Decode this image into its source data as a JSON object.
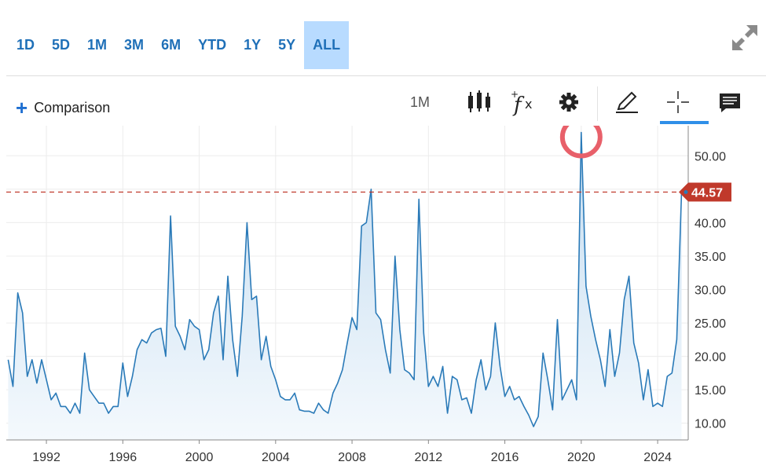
{
  "range_buttons": [
    "1D",
    "5D",
    "1M",
    "3M",
    "6M",
    "YTD",
    "1Y",
    "5Y",
    "ALL"
  ],
  "active_range": "ALL",
  "toolbar": {
    "comparison_label": "Comparison",
    "interval_label": "1M"
  },
  "colors": {
    "line": "#2a7ab8",
    "fill_top": "#c4dcf0",
    "fill_bottom": "#f4f9fd",
    "last_price": "#c0392b",
    "accent": "#1f70b8",
    "highlight_circle": "#e8606a"
  },
  "icons": [
    "expand-icon",
    "candlestick-icon",
    "fx-icon",
    "gear-icon",
    "pencil-icon",
    "crosshair-icon",
    "comment-icon"
  ],
  "chart_data": {
    "type": "area",
    "title": "",
    "xlabel": "",
    "ylabel": "",
    "x_ticks": [
      "1992",
      "1996",
      "2000",
      "2004",
      "2008",
      "2012",
      "2016",
      "2020",
      "2024"
    ],
    "y_ticks": [
      "10.00",
      "15.00",
      "20.00",
      "25.00",
      "30.00",
      "35.00",
      "40.00",
      "45.00",
      "50.00"
    ],
    "xlim": [
      1989.9,
      2025.6
    ],
    "ylim": [
      7.5,
      54.5
    ],
    "last_value": 44.57,
    "last_value_label": "44.57",
    "grid": true,
    "highlight_peak": [
      2020.0,
      53.5
    ],
    "series": [
      {
        "x": [
          1990,
          1990.25,
          1990.5,
          1990.75,
          1991,
          1991.25,
          1991.5,
          1991.75,
          1992,
          1992.25,
          1992.5,
          1992.75,
          1993,
          1993.25,
          1993.5,
          1993.75,
          1994,
          1994.25,
          1994.5,
          1994.75,
          1995,
          1995.25,
          1995.5,
          1995.75,
          1996,
          1996.25,
          1996.5,
          1996.75,
          1997,
          1997.25,
          1997.5,
          1997.75,
          1998,
          1998.25,
          1998.5,
          1998.75,
          1999,
          1999.25,
          1999.5,
          1999.75,
          2000,
          2000.25,
          2000.5,
          2000.75,
          2001,
          2001.25,
          2001.5,
          2001.75,
          2002,
          2002.25,
          2002.5,
          2002.75,
          2003,
          2003.25,
          2003.5,
          2003.75,
          2004,
          2004.25,
          2004.5,
          2004.75,
          2005,
          2005.25,
          2005.5,
          2005.75,
          2006,
          2006.25,
          2006.5,
          2006.75,
          2007,
          2007.25,
          2007.5,
          2007.75,
          2008,
          2008.25,
          2008.5,
          2008.75,
          2009,
          2009.25,
          2009.5,
          2009.75,
          2010,
          2010.25,
          2010.5,
          2010.75,
          2011,
          2011.25,
          2011.5,
          2011.75,
          2012,
          2012.25,
          2012.5,
          2012.75,
          2013,
          2013.25,
          2013.5,
          2013.75,
          2014,
          2014.25,
          2014.5,
          2014.75,
          2015,
          2015.25,
          2015.5,
          2015.75,
          2016,
          2016.25,
          2016.5,
          2016.75,
          2017,
          2017.25,
          2017.5,
          2017.75,
          2018,
          2018.25,
          2018.5,
          2018.75,
          2019,
          2019.25,
          2019.5,
          2019.75,
          2020,
          2020.25,
          2020.5,
          2020.75,
          2021,
          2021.25,
          2021.5,
          2021.75,
          2022,
          2022.25,
          2022.5,
          2022.75,
          2023,
          2023.25,
          2023.5,
          2023.75,
          2024,
          2024.25,
          2024.5,
          2024.75,
          2025,
          2025.25
        ],
        "y": [
          19.5,
          15.5,
          29.5,
          26.5,
          17,
          19.5,
          16,
          19.5,
          16.5,
          13.5,
          14.5,
          12.5,
          12.5,
          11.5,
          13,
          11.5,
          20.5,
          15,
          14,
          13,
          13,
          11.5,
          12.5,
          12.5,
          19,
          14,
          17,
          21,
          22.5,
          22,
          23.5,
          24,
          24.2,
          20,
          41,
          24.5,
          23,
          21,
          25.5,
          24.5,
          24,
          19.5,
          21,
          26.5,
          29,
          19.5,
          32,
          22.5,
          17,
          26,
          40,
          28.5,
          29,
          19.5,
          23,
          18.5,
          16.5,
          14,
          13.5,
          13.5,
          14.5,
          12,
          11.8,
          11.8,
          11.5,
          13,
          12,
          11.5,
          14.5,
          16,
          18,
          22,
          25.8,
          24,
          39.5,
          40,
          45,
          26.5,
          25.5,
          21,
          17.5,
          35,
          24,
          18,
          17.5,
          16.5,
          43.5,
          23.5,
          15.5,
          17,
          15.5,
          18.5,
          11.5,
          17,
          16.5,
          13.5,
          13.8,
          11.5,
          16.5,
          19.5,
          15,
          17,
          25,
          18.5,
          14,
          15.5,
          13.5,
          14,
          12.5,
          11.2,
          9.5,
          11,
          20.5,
          16.5,
          12,
          25.5,
          13.5,
          15,
          16.5,
          13.5,
          53.5,
          30.5,
          26,
          22.5,
          19.5,
          15.5,
          24,
          17,
          20.5,
          28.5,
          32,
          22,
          19,
          13.5,
          18,
          12.5,
          13,
          12.5,
          17,
          17.5,
          22.5,
          44.57
        ]
      }
    ]
  }
}
